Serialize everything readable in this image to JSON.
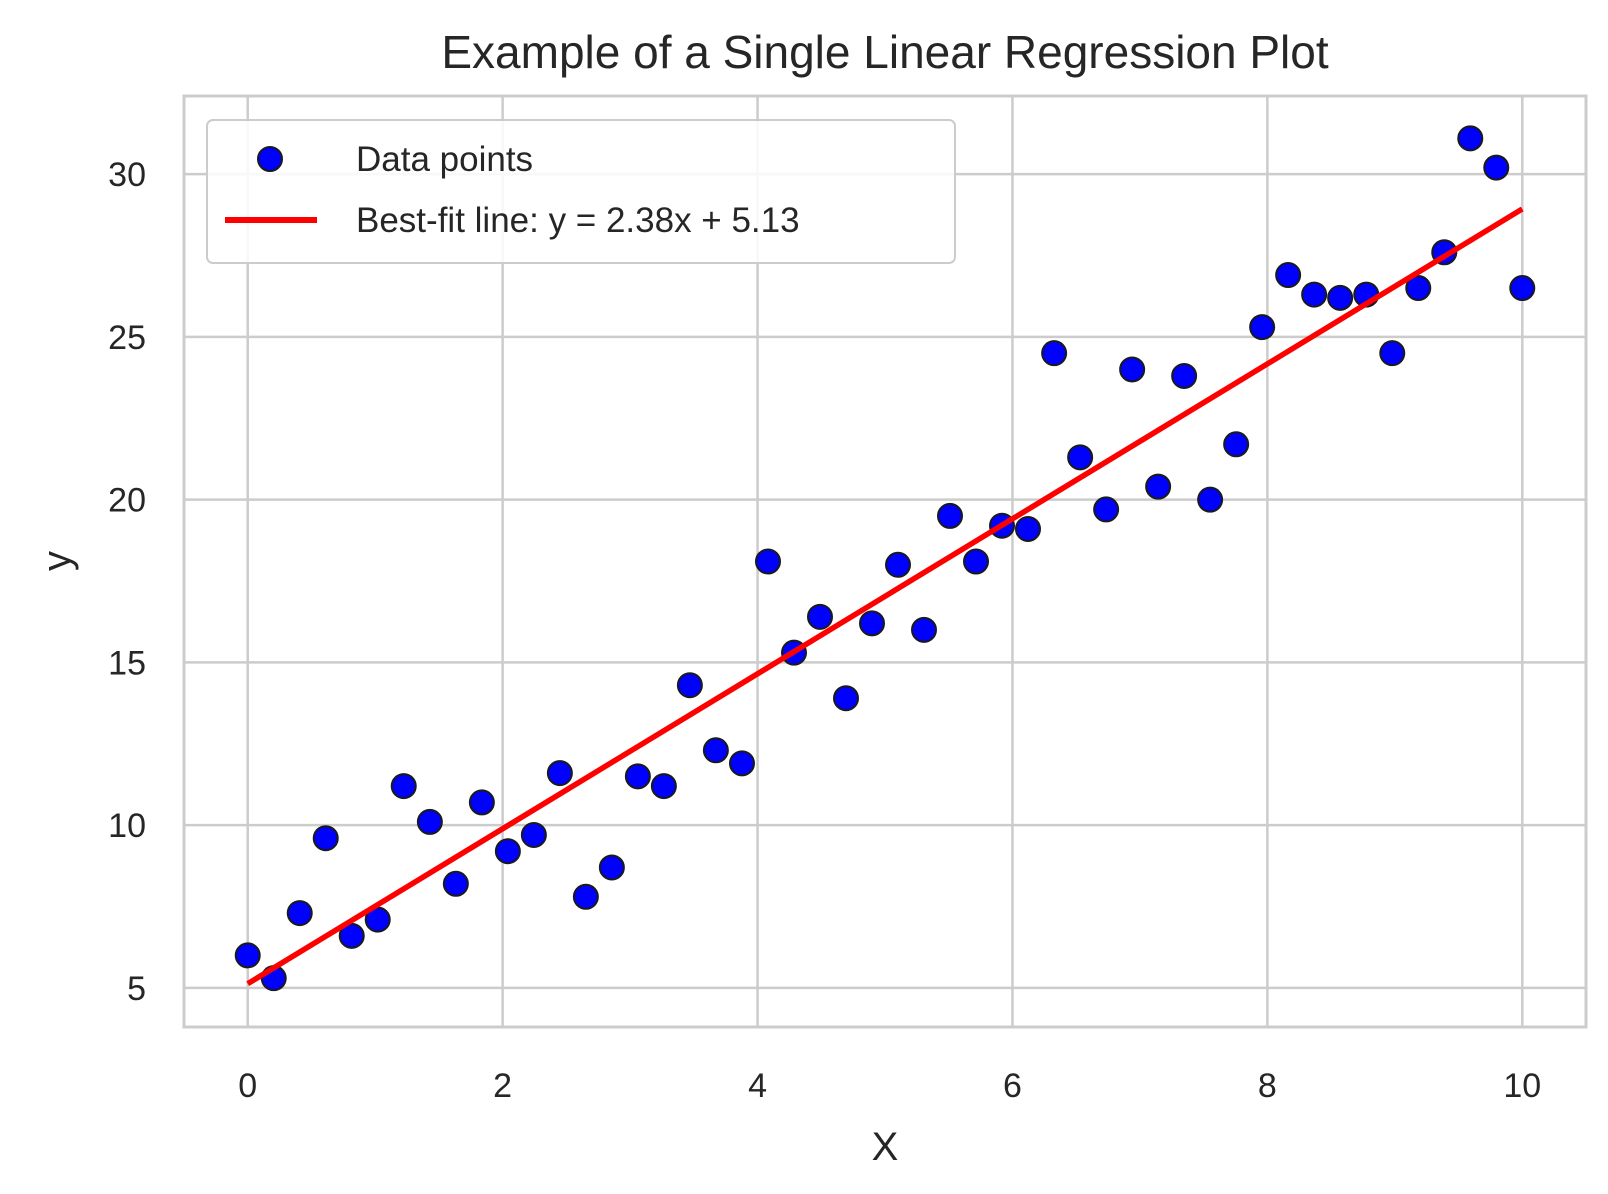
{
  "chart_data": {
    "type": "scatter",
    "title": "Example of a Single Linear Regression Plot",
    "xlabel": "X",
    "ylabel": "y",
    "xlim": [
      -0.5,
      10.5
    ],
    "ylim": [
      3.8,
      32.4
    ],
    "xticks": [
      0,
      2,
      4,
      6,
      8,
      10
    ],
    "yticks": [
      5,
      10,
      15,
      20,
      25,
      30
    ],
    "grid": true,
    "legend_position": "top-left",
    "colors": {
      "points": "#0000ff",
      "point_edge": "#1a1a1a",
      "line": "#ff0000",
      "grid": "#cccccc"
    },
    "series": [
      {
        "name": "Data points",
        "kind": "scatter",
        "x": [
          0,
          0.204,
          0.408,
          0.612,
          0.816,
          1.02,
          1.224,
          1.429,
          1.633,
          1.837,
          2.041,
          2.245,
          2.449,
          2.653,
          2.857,
          3.061,
          3.265,
          3.469,
          3.673,
          3.878,
          4.082,
          4.286,
          4.49,
          4.694,
          4.898,
          5.102,
          5.306,
          5.51,
          5.714,
          5.918,
          6.122,
          6.327,
          6.531,
          6.735,
          6.939,
          7.143,
          7.347,
          7.551,
          7.755,
          7.959,
          8.163,
          8.367,
          8.571,
          8.776,
          8.98,
          9.184,
          9.388,
          9.592,
          9.796,
          10
        ],
        "y": [
          6.0,
          5.3,
          7.3,
          9.6,
          6.6,
          7.1,
          11.2,
          10.1,
          8.2,
          10.7,
          9.2,
          9.7,
          11.6,
          7.8,
          8.7,
          11.5,
          11.2,
          14.3,
          12.3,
          11.9,
          18.1,
          15.3,
          16.4,
          13.9,
          16.2,
          18.0,
          16.0,
          19.5,
          18.1,
          19.2,
          19.1,
          24.5,
          21.3,
          19.7,
          24.0,
          20.4,
          23.8,
          20.0,
          21.7,
          25.3,
          26.9,
          26.3,
          26.2,
          26.3,
          24.5,
          26.5,
          27.6,
          31.1,
          30.2,
          26.5
        ]
      },
      {
        "name": "Best-fit line: y = 2.38x + 5.13",
        "kind": "line",
        "slope": 2.38,
        "intercept": 5.13,
        "x": [
          0,
          10
        ],
        "y": [
          5.13,
          28.93
        ]
      }
    ]
  }
}
